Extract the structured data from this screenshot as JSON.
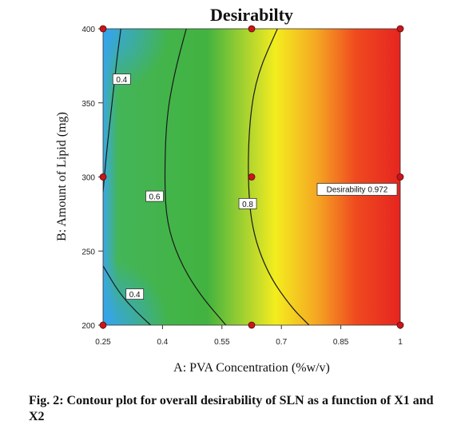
{
  "chart_data": {
    "type": "heatmap",
    "subtype": "contour",
    "title": "Desirabilty",
    "xlabel": "A: PVA Concentration (%w/v)",
    "ylabel": "B: Amount of Lipid (mg)",
    "xlim": [
      0.25,
      1
    ],
    "ylim": [
      200,
      400
    ],
    "x_ticks": [
      "0.25",
      "0.4",
      "0.55",
      "0.7",
      "0.85",
      "1"
    ],
    "y_ticks": [
      "200",
      "250",
      "300",
      "350",
      "400"
    ],
    "colormap": [
      "#3aa8e6",
      "#3cb043",
      "#f2ee1c",
      "#f39a1e",
      "#e8201e"
    ],
    "contours": [
      {
        "level": 0.4,
        "label": "0.4",
        "points": [
          [
            0.295,
            400
          ],
          [
            0.285,
            380
          ],
          [
            0.275,
            355
          ],
          [
            0.26,
            320
          ],
          [
            0.25,
            290
          ]
        ]
      },
      {
        "level": 0.4,
        "label": "0.4",
        "points": [
          [
            0.25,
            240
          ],
          [
            0.29,
            222
          ],
          [
            0.33,
            210
          ],
          [
            0.37,
            200
          ]
        ]
      },
      {
        "level": 0.6,
        "label": "0.6",
        "points": [
          [
            0.46,
            400
          ],
          [
            0.43,
            370
          ],
          [
            0.41,
            340
          ],
          [
            0.405,
            300
          ],
          [
            0.41,
            270
          ],
          [
            0.44,
            245
          ],
          [
            0.49,
            222
          ],
          [
            0.56,
            200
          ]
        ]
      },
      {
        "level": 0.8,
        "label": "0.8",
        "points": [
          [
            0.69,
            400
          ],
          [
            0.64,
            370
          ],
          [
            0.62,
            340
          ],
          [
            0.615,
            300
          ],
          [
            0.625,
            265
          ],
          [
            0.665,
            235
          ],
          [
            0.725,
            212
          ],
          [
            0.77,
            200
          ]
        ]
      }
    ],
    "contour_labels": [
      {
        "text": "0.4",
        "x": 0.297,
        "y": 366
      },
      {
        "text": "0.6",
        "x": 0.38,
        "y": 287
      },
      {
        "text": "0.8",
        "x": 0.615,
        "y": 282
      },
      {
        "text": "0.4",
        "x": 0.33,
        "y": 221
      }
    ],
    "design_points": [
      [
        0.25,
        200
      ],
      [
        0.625,
        200
      ],
      [
        1,
        200
      ],
      [
        0.25,
        300
      ],
      [
        0.625,
        300
      ],
      [
        1,
        300
      ],
      [
        0.25,
        400
      ],
      [
        0.625,
        400
      ],
      [
        1,
        400
      ]
    ],
    "annotation": {
      "text": "Desirability  0.972",
      "x": 1,
      "y": 300
    }
  },
  "caption": {
    "text": "Fig. 2: Contour plot for overall desirability of SLN as a function of X1 and X2"
  }
}
